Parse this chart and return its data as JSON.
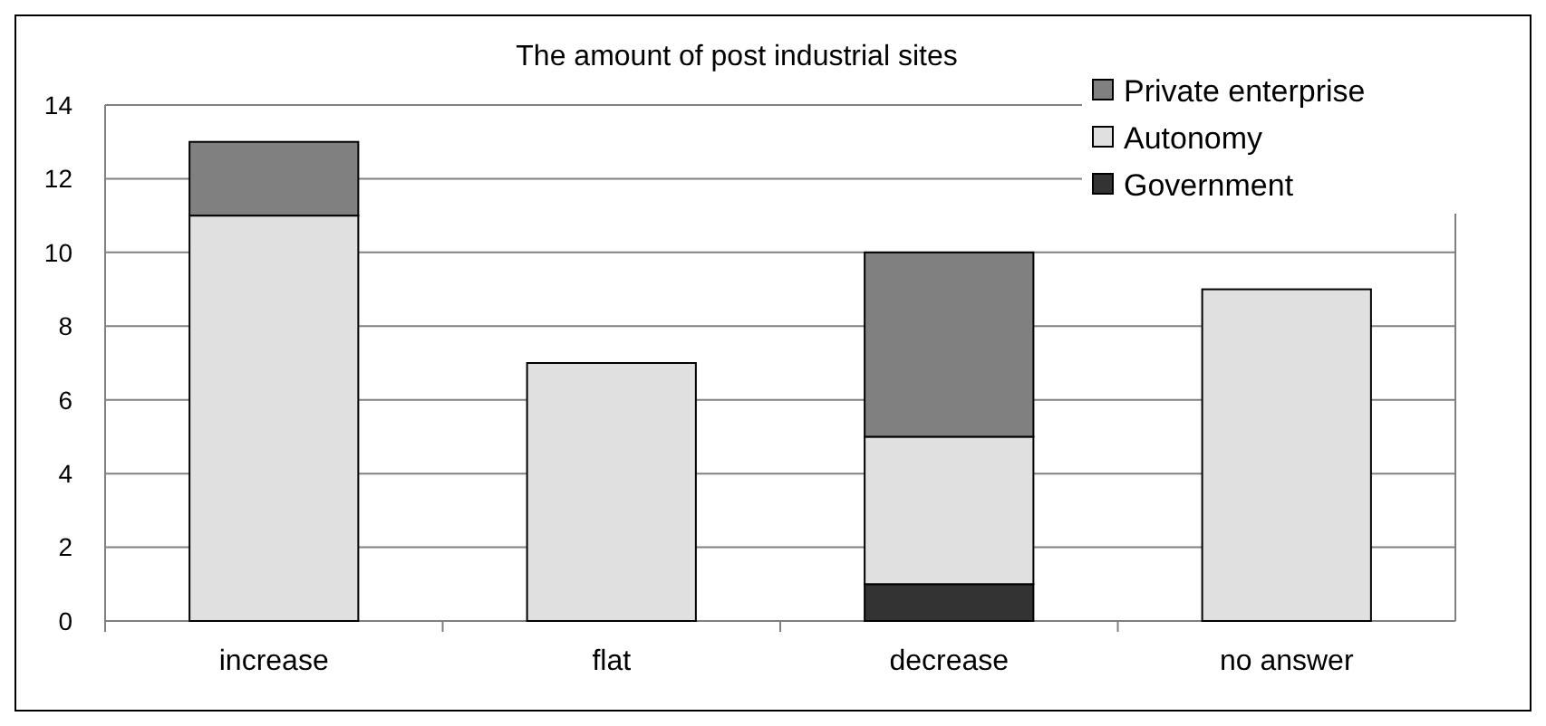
{
  "chart_data": {
    "type": "bar",
    "title": "The amount of post industrial sites",
    "categories": [
      "increase",
      "flat",
      "decrease",
      "no answer"
    ],
    "stacked": true,
    "series": [
      {
        "name": "Government",
        "color": "#333333",
        "values": [
          0,
          0,
          1,
          0
        ]
      },
      {
        "name": "Autonomy",
        "color": "#e0e0e0",
        "values": [
          11,
          7,
          4,
          9
        ]
      },
      {
        "name": "Private enterprise",
        "color": "#808080",
        "values": [
          2,
          0,
          5,
          0
        ]
      }
    ],
    "ylim": [
      0,
      14
    ],
    "yticks": [
      0,
      2,
      4,
      6,
      8,
      10,
      12,
      14
    ],
    "grid": "y",
    "legend": "top right"
  }
}
